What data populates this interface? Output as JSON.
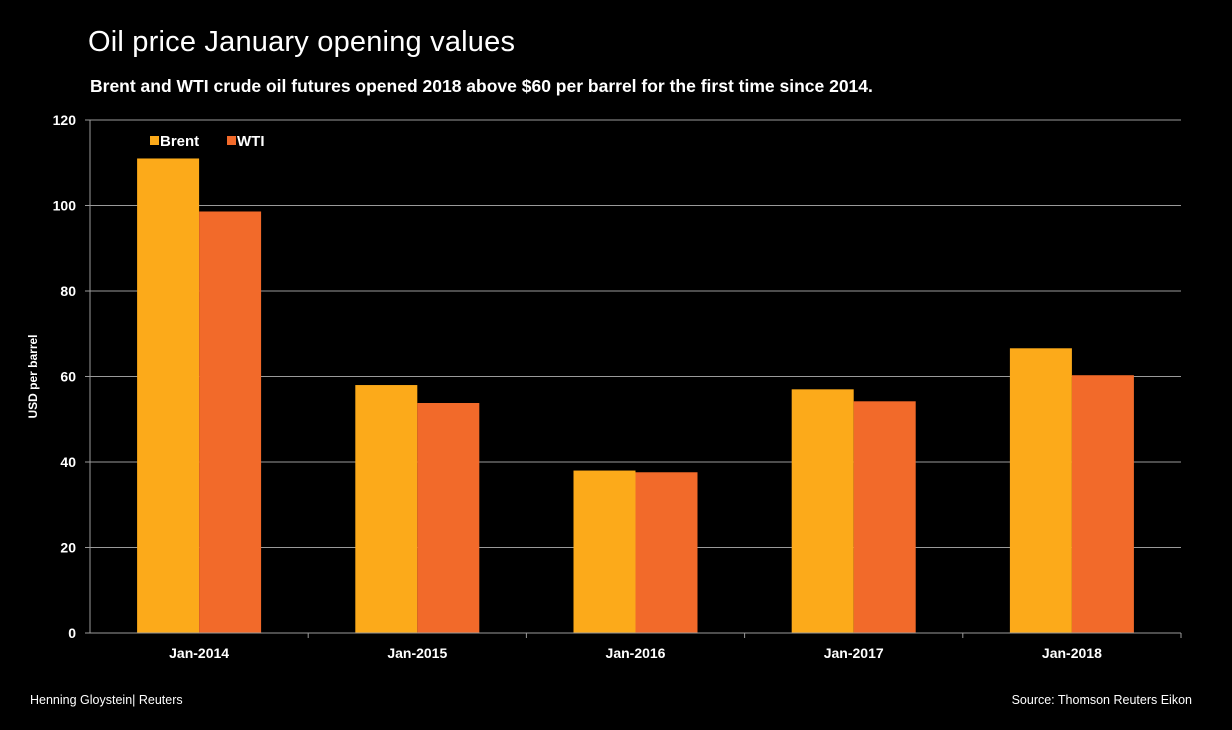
{
  "chart_data": {
    "type": "bar",
    "title": "Oil price January opening values",
    "subtitle": "Brent and WTI crude oil futures opened 2018 above $60 per barrel for the first time since 2014.",
    "xlabel": "",
    "ylabel": "USD per barrel",
    "ylim": [
      0,
      120
    ],
    "yticks": [
      0,
      20,
      40,
      60,
      80,
      100,
      120
    ],
    "categories": [
      "Jan-2014",
      "Jan-2015",
      "Jan-2016",
      "Jan-2017",
      "Jan-2018"
    ],
    "series": [
      {
        "name": "Brent",
        "color": "#FCAA1A",
        "values": [
          111,
          58,
          38,
          57,
          66.6
        ]
      },
      {
        "name": "WTI",
        "color": "#F26A2A",
        "values": [
          98.6,
          53.8,
          37.6,
          54.2,
          60.3
        ]
      }
    ],
    "grid": true,
    "legend_position": "top-left"
  },
  "footer": {
    "author": "Henning Gloystein| Reuters",
    "source": "Source: Thomson Reuters Eikon"
  }
}
